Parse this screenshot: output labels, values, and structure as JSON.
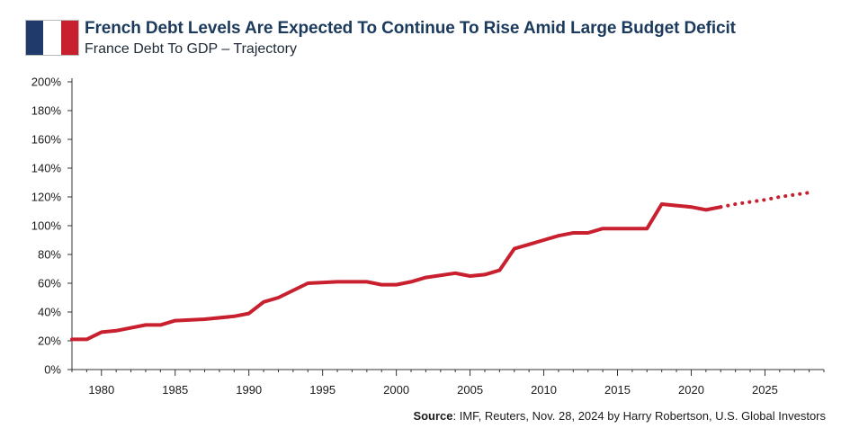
{
  "header": {
    "flag_colors": [
      "#1f3a6b",
      "#ffffff",
      "#c8202e"
    ],
    "title": "French Debt Levels Are Expected To Continue To Rise Amid Large Budget Deficit",
    "subtitle": "France Debt To GDP – Trajectory"
  },
  "footer": {
    "source_label": "Source",
    "source_text": ": IMF, Reuters, Nov. 28, 2024 by Harry Robertson, U.S. Global Investors"
  },
  "chart_data": {
    "type": "line",
    "title": "French Debt Levels Are Expected To Continue To Rise Amid Large Budget Deficit",
    "subtitle": "France Debt To GDP – Trajectory",
    "xlabel": "",
    "ylabel": "",
    "xlim": [
      1978,
      2029
    ],
    "ylim": [
      0,
      200
    ],
    "x_ticks": [
      1980,
      1985,
      1990,
      1995,
      2000,
      2005,
      2010,
      2015,
      2020,
      2025
    ],
    "y_ticks": [
      0,
      20,
      40,
      60,
      80,
      100,
      120,
      140,
      160,
      180,
      200
    ],
    "y_tick_suffix": "%",
    "grid": false,
    "line_color": "#c8202e",
    "series": [
      {
        "style": "solid",
        "x": [
          1978,
          1979,
          1980,
          1981,
          1983,
          1984,
          1985,
          1987,
          1989,
          1990,
          1991,
          1992,
          1994,
          1996,
          1998,
          1999,
          2000,
          2001,
          2002,
          2004,
          2005,
          2006,
          2007,
          2008,
          2009,
          2010,
          2011,
          2012,
          2013,
          2014,
          2015,
          2016,
          2017,
          2018,
          2019,
          2020,
          2021,
          2022
        ],
        "y": [
          21,
          21,
          26,
          27,
          31,
          31,
          34,
          35,
          37,
          39,
          47,
          50,
          60,
          61,
          61,
          59,
          59,
          61,
          64,
          67,
          65,
          66,
          69,
          84,
          87,
          90,
          93,
          95,
          95,
          98,
          98,
          98,
          98,
          115,
          114,
          113,
          111,
          113
        ]
      },
      {
        "style": "dotted",
        "x": [
          2022,
          2023,
          2024,
          2025,
          2026,
          2027,
          2028
        ],
        "y": [
          113,
          115,
          116.5,
          118,
          120,
          121.5,
          123
        ]
      }
    ]
  }
}
